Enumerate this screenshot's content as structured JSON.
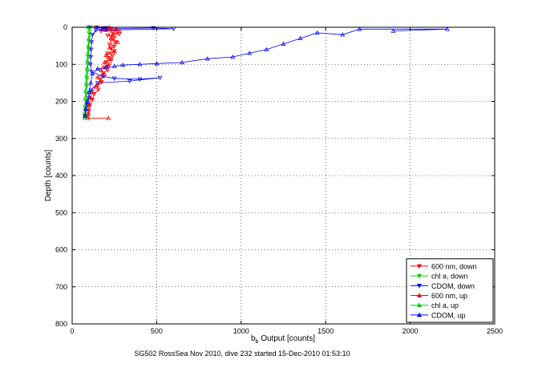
{
  "caption": "SG502 RossSea Nov 2010, dive 232 started 15-Dec-2010 01:53:10",
  "chart_data": {
    "type": "scatter",
    "title": "",
    "xlabel_main": "b",
    "xlabel_sub": "b",
    "xlabel_rest": " Output [counts]",
    "ylabel": "Depth [counts]",
    "xlim": [
      0,
      2500
    ],
    "ylim": [
      800,
      0
    ],
    "xticks": [
      0,
      500,
      1000,
      1500,
      2000,
      2500
    ],
    "yticks": [
      0,
      100,
      200,
      300,
      400,
      500,
      600,
      700,
      800
    ],
    "grid": true,
    "legend_position": "bottom-right",
    "series": [
      {
        "name": "600 nm, down",
        "color": "#ff0000",
        "marker": "triangle-down",
        "points": [
          [
            140,
            0
          ],
          [
            185,
            2
          ],
          [
            230,
            4
          ],
          [
            200,
            6
          ],
          [
            260,
            8
          ],
          [
            170,
            10
          ],
          [
            240,
            14
          ],
          [
            280,
            18
          ],
          [
            210,
            22
          ],
          [
            250,
            28
          ],
          [
            230,
            34
          ],
          [
            260,
            40
          ],
          [
            220,
            46
          ],
          [
            250,
            52
          ],
          [
            230,
            58
          ],
          [
            250,
            64
          ],
          [
            210,
            70
          ],
          [
            240,
            76
          ],
          [
            210,
            82
          ],
          [
            230,
            88
          ],
          [
            200,
            94
          ],
          [
            220,
            100
          ],
          [
            190,
            108
          ],
          [
            210,
            116
          ],
          [
            180,
            124
          ],
          [
            190,
            132
          ],
          [
            165,
            140
          ],
          [
            175,
            148
          ],
          [
            150,
            158
          ],
          [
            155,
            168
          ],
          [
            130,
            180
          ],
          [
            120,
            195
          ],
          [
            105,
            210
          ],
          [
            100,
            225
          ],
          [
            95,
            240
          ]
        ]
      },
      {
        "name": "chl a, down",
        "color": "#00cc00",
        "marker": "triangle-down",
        "points": [
          [
            110,
            0
          ],
          [
            104,
            20
          ],
          [
            100,
            40
          ],
          [
            98,
            60
          ],
          [
            95,
            80
          ],
          [
            93,
            100
          ],
          [
            90,
            120
          ],
          [
            88,
            140
          ],
          [
            86,
            160
          ],
          [
            84,
            180
          ],
          [
            82,
            200
          ],
          [
            80,
            220
          ],
          [
            80,
            240
          ]
        ]
      },
      {
        "name": "CDOM, down",
        "color": "#0000ff",
        "marker": "triangle-down",
        "points": [
          [
            100,
            0
          ],
          [
            150,
            1
          ],
          [
            200,
            2
          ],
          [
            170,
            4
          ],
          [
            480,
            2
          ],
          [
            600,
            4
          ],
          [
            140,
            8
          ],
          [
            120,
            20
          ],
          [
            115,
            40
          ],
          [
            112,
            60
          ],
          [
            110,
            80
          ],
          [
            108,
            100
          ],
          [
            115,
            120
          ],
          [
            180,
            132
          ],
          [
            250,
            138
          ],
          [
            400,
            140
          ],
          [
            520,
            136
          ],
          [
            340,
            145
          ],
          [
            150,
            150
          ],
          [
            110,
            170
          ],
          [
            100,
            190
          ],
          [
            90,
            210
          ],
          [
            80,
            225
          ],
          [
            75,
            240
          ]
        ]
      },
      {
        "name": "600 nm, up",
        "color": "#ff0000",
        "marker": "triangle-up",
        "points": [
          [
            220,
            0
          ],
          [
            260,
            5
          ],
          [
            280,
            10
          ],
          [
            240,
            20
          ],
          [
            230,
            30
          ],
          [
            270,
            40
          ],
          [
            220,
            55
          ],
          [
            250,
            65
          ],
          [
            200,
            75
          ],
          [
            230,
            85
          ],
          [
            190,
            95
          ],
          [
            210,
            105
          ],
          [
            170,
            115
          ],
          [
            190,
            125
          ],
          [
            150,
            135
          ],
          [
            170,
            145
          ],
          [
            140,
            160
          ],
          [
            120,
            175
          ],
          [
            110,
            190
          ],
          [
            100,
            210
          ],
          [
            95,
            230
          ],
          [
            90,
            245
          ],
          [
            215,
            245
          ]
        ]
      },
      {
        "name": "chl a, up",
        "color": "#00cc00",
        "marker": "triangle-up",
        "points": [
          [
            95,
            0
          ],
          [
            100,
            10
          ],
          [
            98,
            30
          ],
          [
            95,
            50
          ],
          [
            92,
            70
          ],
          [
            90,
            90
          ],
          [
            88,
            110
          ],
          [
            85,
            130
          ],
          [
            83,
            150
          ],
          [
            80,
            170
          ],
          [
            78,
            190
          ],
          [
            76,
            210
          ],
          [
            74,
            230
          ],
          [
            75,
            245
          ]
        ]
      },
      {
        "name": "CDOM, up",
        "color": "#0000ff",
        "marker": "triangle-up",
        "points": [
          [
            1900,
            10
          ],
          [
            2220,
            5
          ],
          [
            1700,
            5
          ],
          [
            1600,
            20
          ],
          [
            1450,
            15
          ],
          [
            1350,
            30
          ],
          [
            1250,
            45
          ],
          [
            1150,
            60
          ],
          [
            1050,
            70
          ],
          [
            950,
            80
          ],
          [
            800,
            85
          ],
          [
            650,
            95
          ],
          [
            500,
            98
          ],
          [
            400,
            100
          ],
          [
            300,
            102
          ],
          [
            250,
            105
          ],
          [
            200,
            108
          ],
          [
            150,
            112
          ],
          [
            120,
            125
          ],
          [
            110,
            150
          ],
          [
            100,
            175
          ],
          [
            90,
            200
          ],
          [
            80,
            220
          ],
          [
            75,
            240
          ]
        ]
      }
    ]
  }
}
